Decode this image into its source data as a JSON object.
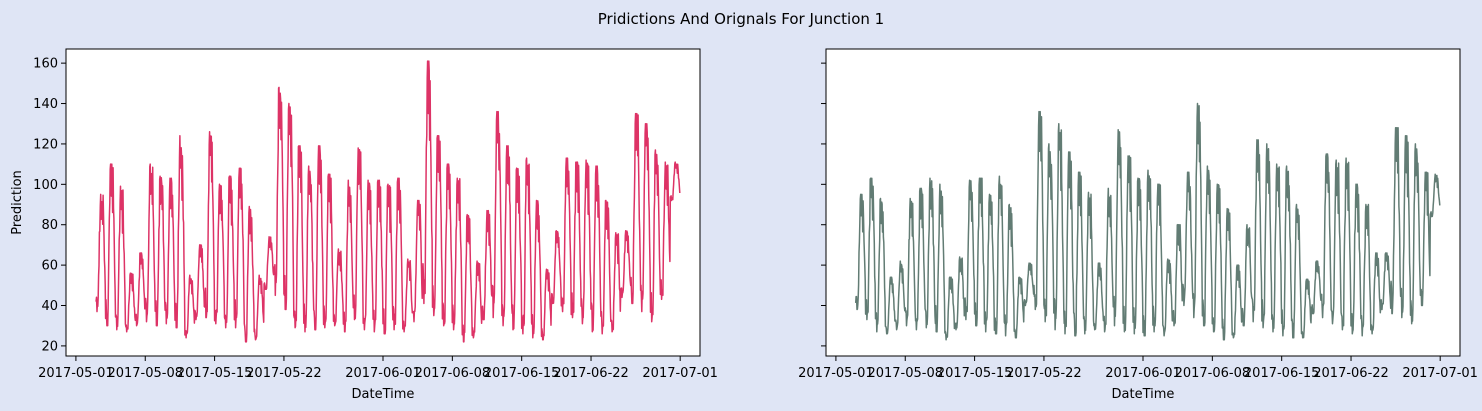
{
  "figure": {
    "title": "Pridictions And Orignals For Junction 1",
    "background": "#dfe5f5"
  },
  "chart_data": [
    {
      "type": "line",
      "panel": "left",
      "xlabel": "DateTime",
      "ylabel": "Prediction",
      "color": "#dd3366",
      "x_range": [
        "2017-04-30",
        "2017-07-03"
      ],
      "ylim": [
        15,
        167
      ],
      "y_ticks": [
        20,
        40,
        60,
        80,
        100,
        120,
        140,
        160
      ],
      "x_ticks": [
        "2017-05-01",
        "2017-05-08",
        "2017-05-15",
        "2017-05-22",
        "2017-06-01",
        "2017-06-08",
        "2017-06-15",
        "2017-06-22",
        "2017-07-01"
      ],
      "grid": false,
      "series_start": "2017-05-03",
      "series_end": "2017-06-30",
      "daily_peaks": [
        95,
        110,
        99,
        56,
        66,
        110,
        104,
        103,
        124,
        55,
        70,
        126,
        100,
        104,
        108,
        89,
        55,
        74,
        148,
        140,
        119,
        109,
        119,
        105,
        68,
        102,
        118,
        102,
        102,
        100,
        103,
        63,
        92,
        161,
        124,
        110,
        103,
        85,
        62,
        87,
        136,
        119,
        108,
        113,
        92,
        58,
        77,
        113,
        111,
        112,
        109,
        92,
        76,
        77,
        135,
        130,
        117,
        111,
        111
      ],
      "daily_troughs": [
        37,
        30,
        28,
        27,
        30,
        32,
        30,
        31,
        29,
        24,
        33,
        34,
        31,
        29,
        29,
        22,
        23,
        48,
        45,
        38,
        29,
        27,
        28,
        29,
        30,
        27,
        33,
        28,
        27,
        26,
        28,
        27,
        32,
        41,
        35,
        30,
        28,
        22,
        24,
        33,
        34,
        30,
        28,
        26,
        24,
        23,
        41,
        37,
        34,
        31,
        27,
        26,
        27,
        44,
        41,
        37,
        32,
        43,
        92
      ]
    },
    {
      "type": "line",
      "panel": "right",
      "xlabel": "DateTime",
      "ylabel": "",
      "color": "#627c74",
      "x_range": [
        "2017-04-30",
        "2017-07-03"
      ],
      "ylim": [
        15,
        167
      ],
      "y_ticks": [
        20,
        40,
        60,
        80,
        100,
        120,
        140,
        160
      ],
      "y_tick_labels_visible": false,
      "x_ticks": [
        "2017-05-01",
        "2017-05-08",
        "2017-05-15",
        "2017-05-22",
        "2017-06-01",
        "2017-06-08",
        "2017-06-15",
        "2017-06-22",
        "2017-07-01"
      ],
      "grid": false,
      "series_start": "2017-05-03",
      "series_end": "2017-06-30",
      "daily_peaks": [
        95,
        103,
        93,
        54,
        62,
        93,
        98,
        103,
        100,
        54,
        64,
        102,
        103,
        95,
        104,
        90,
        54,
        61,
        136,
        120,
        130,
        116,
        106,
        96,
        61,
        98,
        127,
        114,
        103,
        107,
        100,
        63,
        80,
        106,
        140,
        109,
        100,
        88,
        60,
        80,
        122,
        120,
        110,
        109,
        90,
        53,
        62,
        115,
        112,
        113,
        100,
        90,
        66,
        66,
        128,
        124,
        120,
        106,
        105
      ],
      "daily_troughs": [
        38,
        33,
        27,
        26,
        28,
        30,
        28,
        29,
        27,
        23,
        28,
        33,
        30,
        27,
        26,
        25,
        24,
        40,
        38,
        32,
        28,
        26,
        25,
        26,
        28,
        27,
        30,
        27,
        26,
        25,
        27,
        25,
        30,
        40,
        34,
        30,
        27,
        23,
        24,
        30,
        32,
        29,
        27,
        25,
        24,
        24,
        36,
        34,
        31,
        28,
        26,
        25,
        26,
        38,
        36,
        34,
        31,
        40,
        84
      ]
    }
  ]
}
